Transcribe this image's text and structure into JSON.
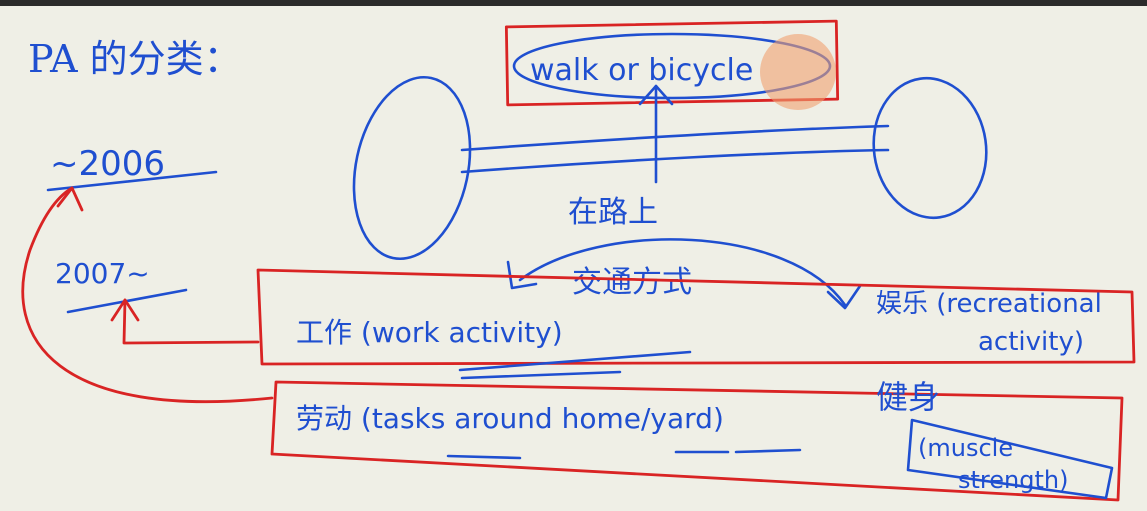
{
  "colors": {
    "ink": "#1f4fd0",
    "highlight": "#d92424",
    "paper": "#efefe6",
    "cursor": "#f0a070"
  },
  "notes": {
    "heading": "PA 的分类：",
    "year_before": "~2006",
    "year_after": "2007~",
    "walk_label": "walk or bicycle",
    "on_road": "在路上",
    "transport": "交通方式",
    "work": "工作 (work activity)",
    "leisure": "娱乐 (recreational activity)",
    "leisure_line1": "娱乐 (recreational",
    "leisure_line2": "activity)",
    "chores": "劳动 (tasks around home/yard)",
    "fitness": "健身",
    "muscle_line1": "(muscle",
    "muscle_line2": "strength)"
  }
}
